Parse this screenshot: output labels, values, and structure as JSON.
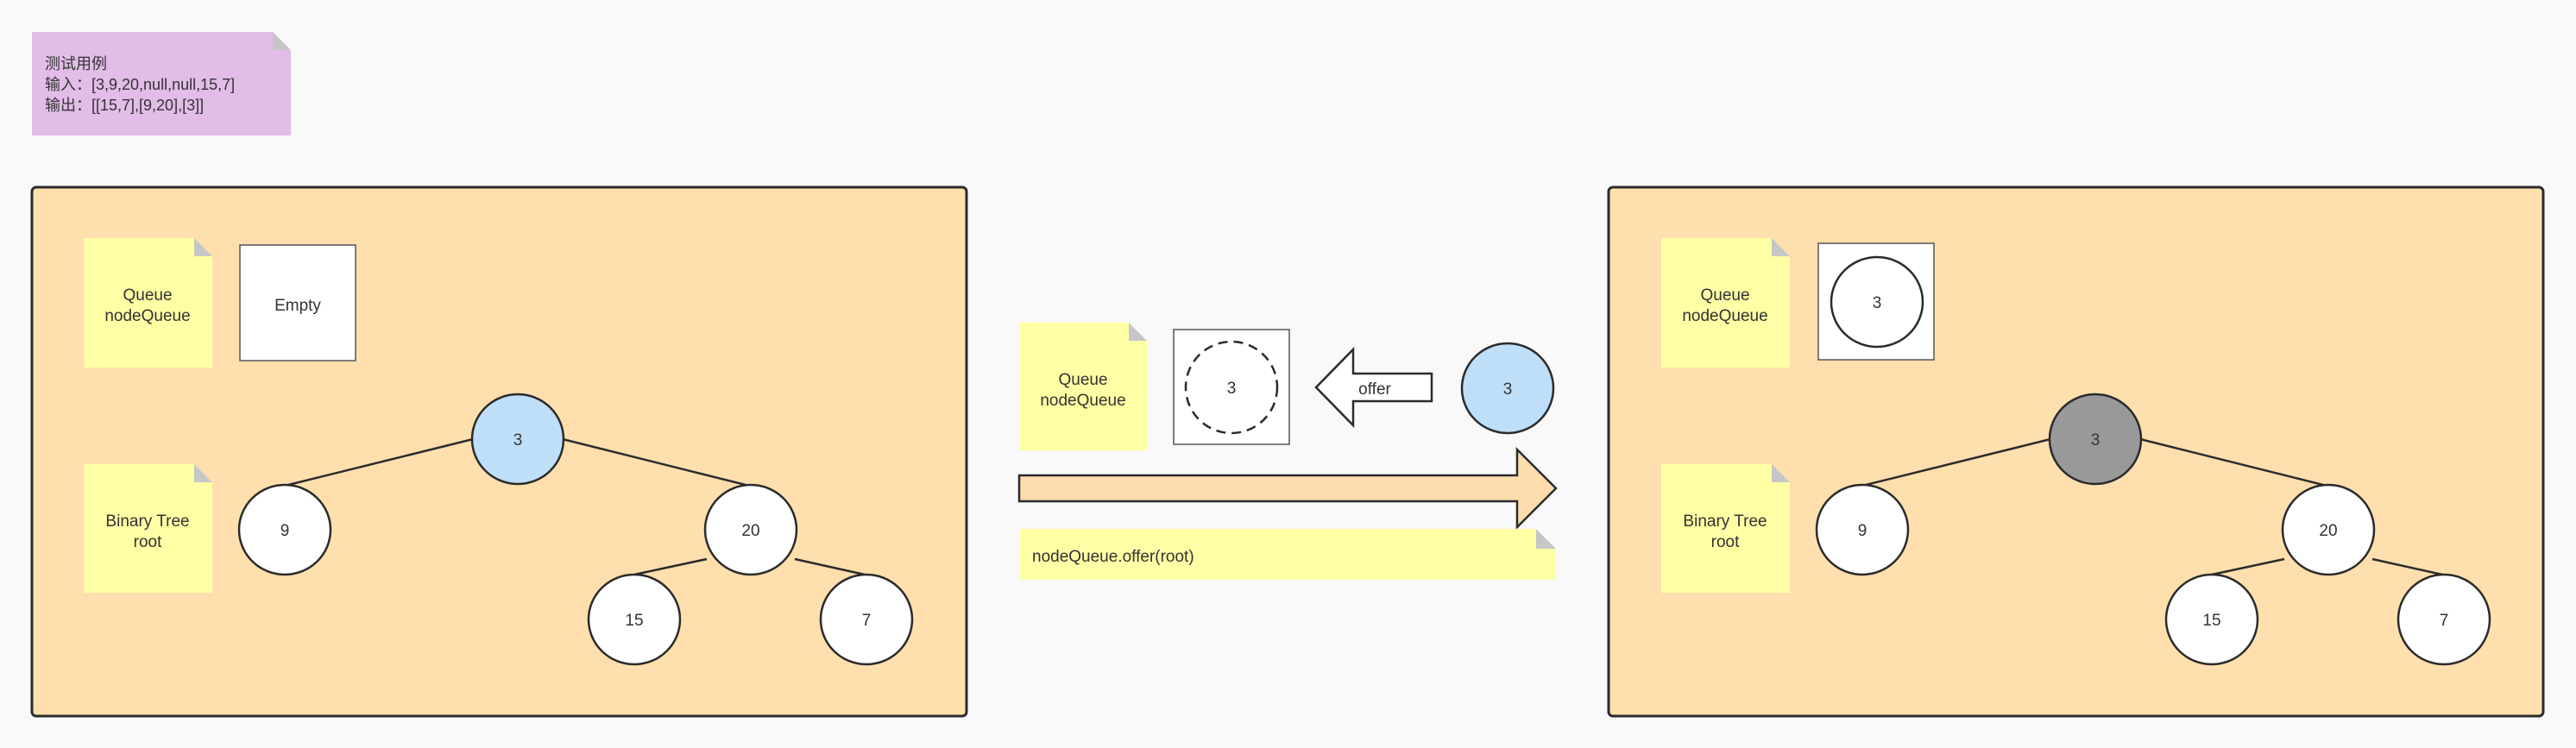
{
  "test_case": {
    "title": "测试用例",
    "input": "输入：[3,9,20,null,null,15,7]",
    "output": "输出：[[15,7],[9,20],[3]]"
  },
  "before_panel": {
    "queue_note": {
      "line1": "Queue",
      "line2": "nodeQueue"
    },
    "queue_box_text": "Empty",
    "tree_note": {
      "line1": "Binary Tree",
      "line2": "root"
    },
    "nodes": {
      "root": "3",
      "left": "9",
      "right": "20",
      "right_left": "15",
      "right_right": "7"
    }
  },
  "middle": {
    "queue_note": {
      "line1": "Queue",
      "line2": "nodeQueue"
    },
    "queue_slot_value": "3",
    "offer_label": "offer",
    "incoming_node": "3",
    "operation": "nodeQueue.offer(root)"
  },
  "after_panel": {
    "queue_note": {
      "line1": "Queue",
      "line2": "nodeQueue"
    },
    "queue_item": "3",
    "tree_note": {
      "line1": "Binary Tree",
      "line2": "root"
    },
    "nodes": {
      "root": "3",
      "left": "9",
      "right": "20",
      "right_left": "15",
      "right_right": "7"
    }
  },
  "colors": {
    "background": "#f9f9f9",
    "panel": "#ffdfae",
    "sticky_note": "#ffffa5",
    "test_note": "#e2bde8",
    "highlight_node": "#bfdff9",
    "visited_node": "#999999",
    "arrow_fill": "#fddcae"
  }
}
